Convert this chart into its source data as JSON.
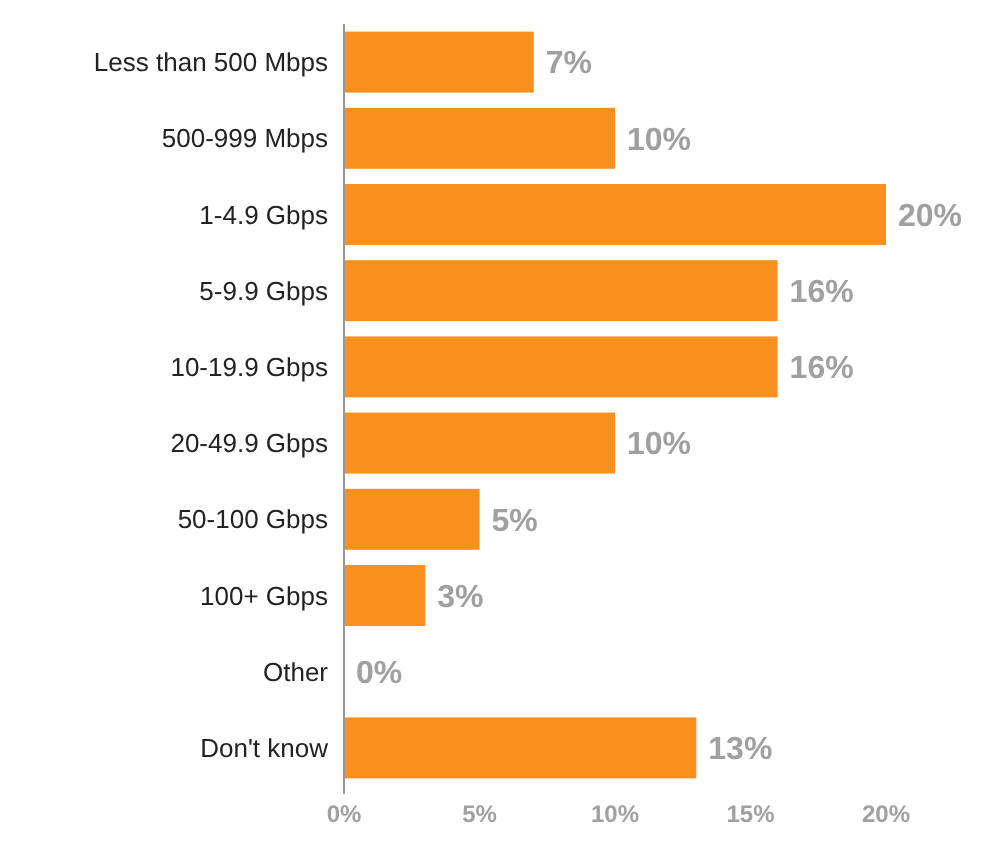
{
  "chart_data": {
    "type": "bar",
    "orientation": "horizontal",
    "categories": [
      "Less than 500 Mbps",
      "500-999 Mbps",
      "1-4.9 Gbps",
      "5-9.9 Gbps",
      "10-19.9 Gbps",
      "20-49.9 Gbps",
      "50-100 Gbps",
      "100+ Gbps",
      "Other",
      "Don't know"
    ],
    "values": [
      7,
      10,
      20,
      16,
      16,
      10,
      5,
      3,
      0,
      13
    ],
    "value_labels": [
      "7%",
      "10%",
      "20%",
      "16%",
      "16%",
      "10%",
      "5%",
      "3%",
      "0%",
      "13%"
    ],
    "color": "#f7901e",
    "xlim": [
      0,
      20
    ],
    "xticks": [
      {
        "value": 0,
        "label": "0%"
      },
      {
        "value": 5,
        "label": "5%"
      },
      {
        "value": 10,
        "label": "10%"
      },
      {
        "value": 15,
        "label": "15%"
      },
      {
        "value": 20,
        "label": "20%"
      }
    ],
    "grid": false
  }
}
